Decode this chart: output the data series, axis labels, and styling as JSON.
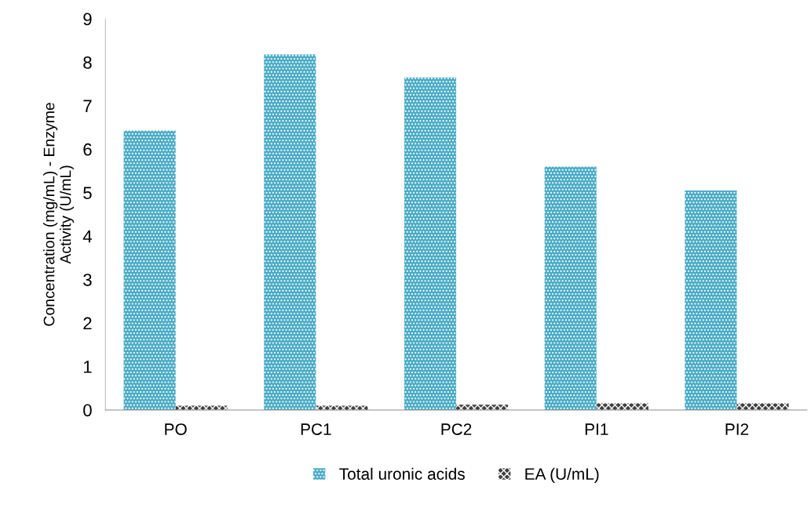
{
  "chart_data": {
    "type": "bar",
    "ylabel": "Concentration (mg/mL) - Enzyme\nActivity (U/mL)",
    "categories": [
      "PO",
      "PC1",
      "PC2",
      "PI1",
      "PI2"
    ],
    "series": [
      {
        "name": "Total uronic acids",
        "color": "#4bacc6",
        "values": [
          6.43,
          8.18,
          7.65,
          5.6,
          5.05
        ]
      },
      {
        "name": "EA (U/mL)",
        "color": "#404040",
        "values": [
          0.1,
          0.1,
          0.12,
          0.15,
          0.15
        ]
      }
    ],
    "ylim": [
      0,
      9
    ],
    "yticks": [
      0,
      1,
      2,
      3,
      4,
      5,
      6,
      7,
      8,
      9
    ],
    "grid": false,
    "legend": "bottom"
  }
}
